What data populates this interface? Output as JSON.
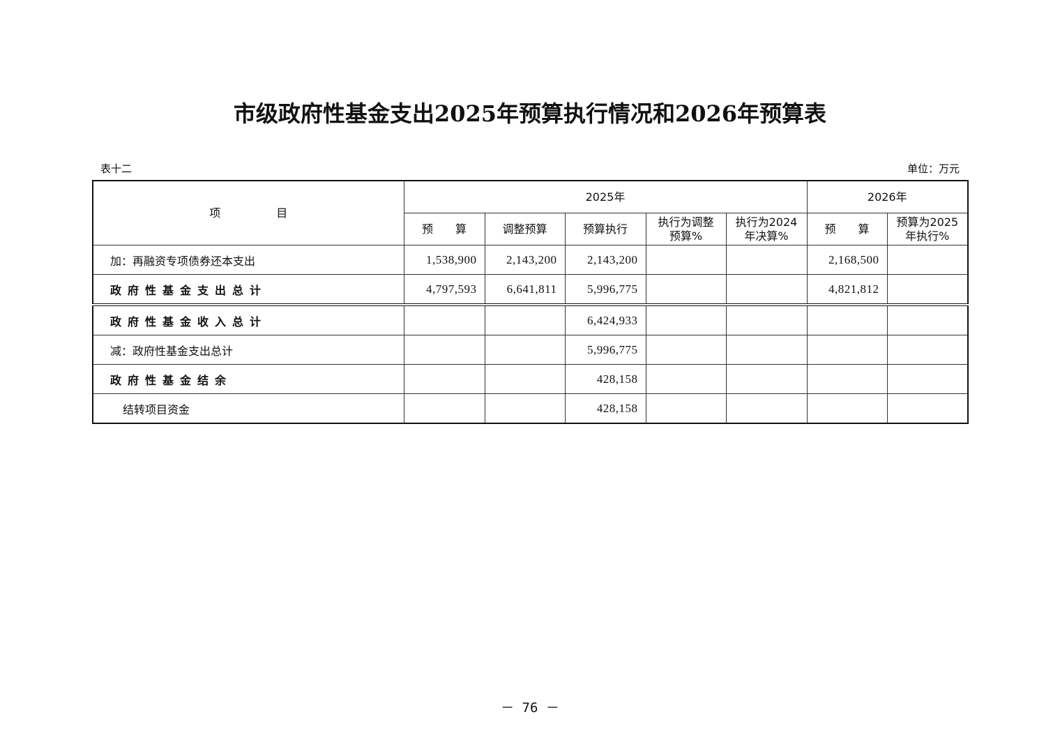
{
  "title": "市级政府性基金支出2025年预算执行情况和2026年预算表",
  "table_no": "表十二",
  "unit": "单位：万元",
  "header": {
    "item": "项　　　　　目",
    "year2025": "2025年",
    "year2026": "2026年",
    "cols": [
      "预　　算",
      "调整预算",
      "预算执行",
      "执行为调整预算%",
      "执行为2024年决算%",
      "预　　算",
      "预算为2025年执行%"
    ]
  },
  "rows": [
    {
      "label": "加：再融资专项债券还本支出",
      "style": "normal",
      "values": [
        "1,538,900",
        "2,143,200",
        "2,143,200",
        "",
        "",
        "2,168,500",
        ""
      ]
    },
    {
      "label": "政府性基金支出总计",
      "style": "bold",
      "values": [
        "4,797,593",
        "6,641,811",
        "5,996,775",
        "",
        "",
        "4,821,812",
        ""
      ]
    },
    {
      "label": "政府性基金收入总计",
      "style": "bold",
      "values": [
        "",
        "",
        "6,424,933",
        "",
        "",
        "",
        ""
      ]
    },
    {
      "label": "减：政府性基金支出总计",
      "style": "normal",
      "values": [
        "",
        "",
        "5,996,775",
        "",
        "",
        "",
        ""
      ]
    },
    {
      "label": "政府性基金结余",
      "style": "bold",
      "values": [
        "",
        "",
        "428,158",
        "",
        "",
        "",
        ""
      ]
    },
    {
      "label": "结转项目资金",
      "style": "indent",
      "values": [
        "",
        "",
        "428,158",
        "",
        "",
        "",
        ""
      ]
    }
  ],
  "page_number": "－ 76 －"
}
